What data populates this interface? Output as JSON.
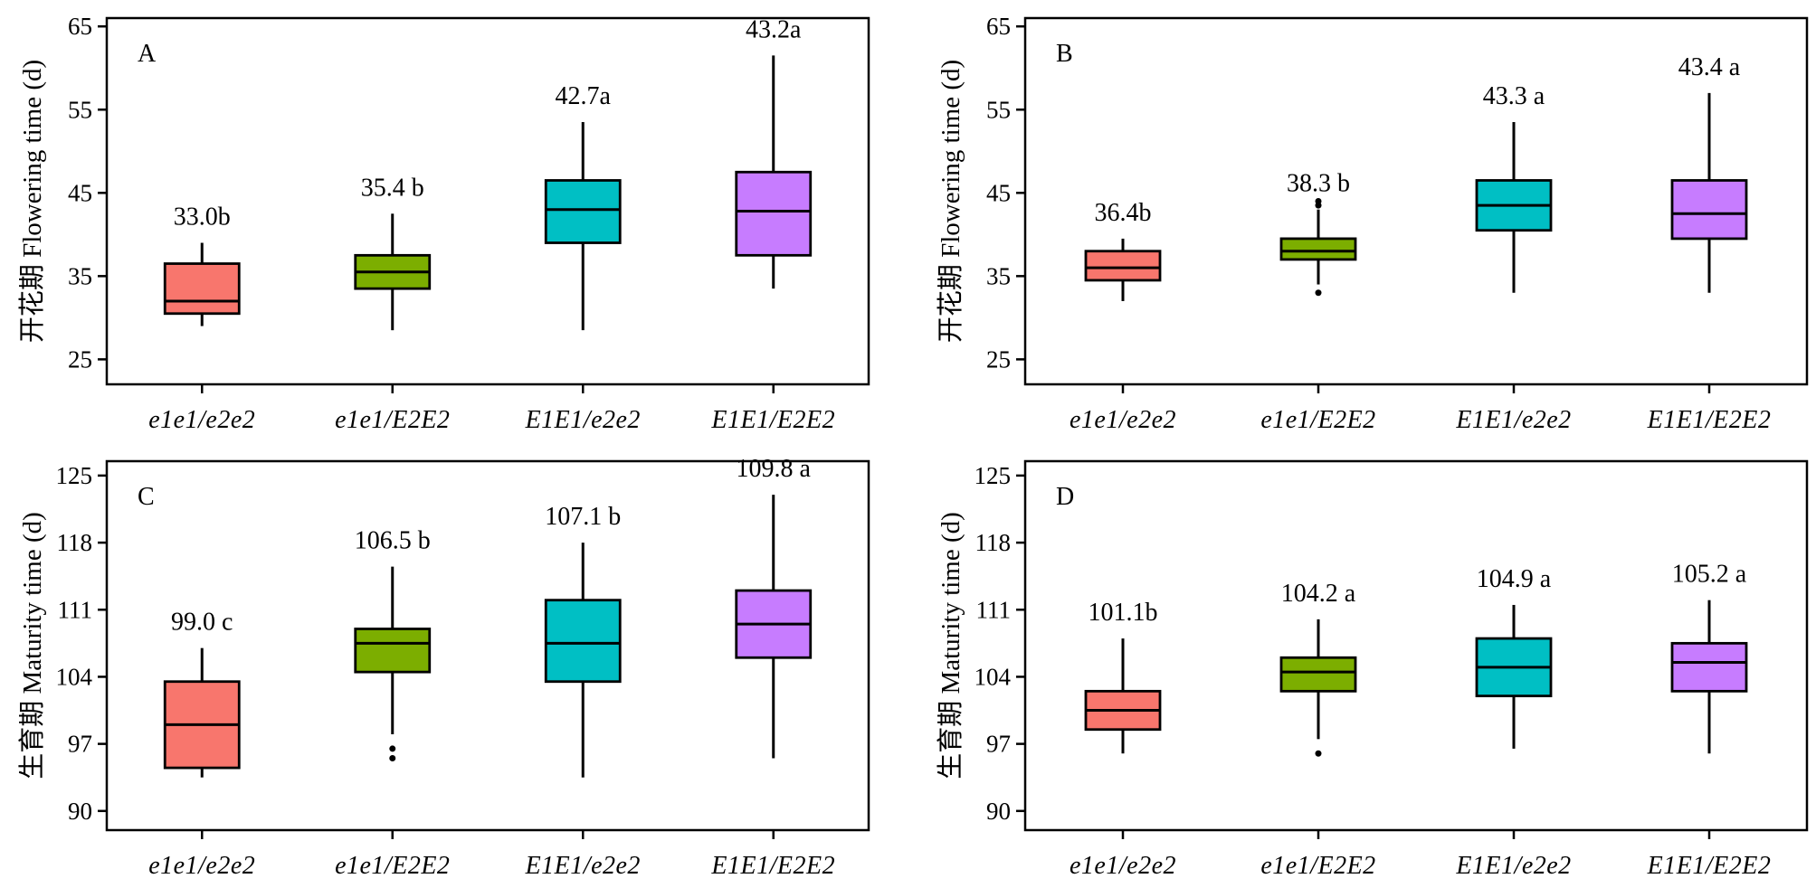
{
  "colors": {
    "e1e1_e2e2": "#f8766d",
    "e1e1_E2E2": "#7cae00",
    "E1E1_e2e2": "#00bfc4",
    "E1E1_E2E2": "#c77cff",
    "axis": "#000000",
    "background": "#ffffff"
  },
  "chart_data": [
    {
      "panel": "A",
      "type": "box",
      "ylabel": "开花期 Flowering time (d)",
      "ylim": [
        22,
        66
      ],
      "yticks": [
        25,
        35,
        45,
        55,
        65
      ],
      "grid": false,
      "categories": [
        "e1e1/e2e2",
        "e1e1/E2E2",
        "E1E1/e2e2",
        "E1E1/E2E2"
      ],
      "boxes": [
        {
          "whisker_low": 29.0,
          "q1": 30.5,
          "median": 32.0,
          "q3": 36.5,
          "whisker_high": 39.0,
          "outliers": [],
          "label": "33.0b"
        },
        {
          "whisker_low": 28.5,
          "q1": 33.5,
          "median": 35.5,
          "q3": 37.5,
          "whisker_high": 42.5,
          "outliers": [],
          "label": "35.4 b"
        },
        {
          "whisker_low": 28.5,
          "q1": 39.0,
          "median": 43.0,
          "q3": 46.5,
          "whisker_high": 53.5,
          "outliers": [],
          "label": "42.7a"
        },
        {
          "whisker_low": 33.5,
          "q1": 37.5,
          "median": 42.8,
          "q3": 47.5,
          "whisker_high": 61.5,
          "outliers": [],
          "label": "43.2a"
        }
      ]
    },
    {
      "panel": "B",
      "type": "box",
      "ylabel": "开花期 Flowering time (d)",
      "ylim": [
        22,
        66
      ],
      "yticks": [
        25,
        35,
        45,
        55,
        65
      ],
      "grid": false,
      "categories": [
        "e1e1/e2e2",
        "e1e1/E2E2",
        "E1E1/e2e2",
        "E1E1/E2E2"
      ],
      "boxes": [
        {
          "whisker_low": 32.0,
          "q1": 34.5,
          "median": 36.0,
          "q3": 38.0,
          "whisker_high": 39.5,
          "outliers": [],
          "label": "36.4b"
        },
        {
          "whisker_low": 34.0,
          "q1": 37.0,
          "median": 38.0,
          "q3": 39.5,
          "whisker_high": 43.0,
          "outliers": [
            33.0,
            43.5,
            44.0
          ],
          "label": "38.3 b"
        },
        {
          "whisker_low": 33.0,
          "q1": 40.5,
          "median": 43.5,
          "q3": 46.5,
          "whisker_high": 53.5,
          "outliers": [],
          "label": "43.3 a"
        },
        {
          "whisker_low": 33.0,
          "q1": 39.5,
          "median": 42.5,
          "q3": 46.5,
          "whisker_high": 57.0,
          "outliers": [],
          "label": "43.4 a"
        }
      ]
    },
    {
      "panel": "C",
      "type": "box",
      "ylabel": "生育期 Maturity time (d)",
      "ylim": [
        88,
        126.5
      ],
      "yticks": [
        90,
        97,
        104,
        111,
        118,
        125
      ],
      "grid": false,
      "categories": [
        "e1e1/e2e2",
        "e1e1/E2E2",
        "E1E1/e2e2",
        "E1E1/E2E2"
      ],
      "boxes": [
        {
          "whisker_low": 93.5,
          "q1": 94.5,
          "median": 99.0,
          "q3": 103.5,
          "whisker_high": 107.0,
          "outliers": [],
          "label": "99.0 c"
        },
        {
          "whisker_low": 98.0,
          "q1": 104.5,
          "median": 107.5,
          "q3": 109.0,
          "whisker_high": 115.5,
          "outliers": [
            95.5,
            96.5
          ],
          "label": "106.5 b"
        },
        {
          "whisker_low": 93.5,
          "q1": 103.5,
          "median": 107.5,
          "q3": 112.0,
          "whisker_high": 118.0,
          "outliers": [],
          "label": "107.1 b"
        },
        {
          "whisker_low": 95.5,
          "q1": 106.0,
          "median": 109.5,
          "q3": 113.0,
          "whisker_high": 123.0,
          "outliers": [],
          "label": "109.8 a"
        }
      ]
    },
    {
      "panel": "D",
      "type": "box",
      "ylabel": "生育期 Maturity time (d)",
      "ylim": [
        88,
        126.5
      ],
      "yticks": [
        90,
        97,
        104,
        111,
        118,
        125
      ],
      "grid": false,
      "categories": [
        "e1e1/e2e2",
        "e1e1/E2E2",
        "E1E1/e2e2",
        "E1E1/E2E2"
      ],
      "boxes": [
        {
          "whisker_low": 96.0,
          "q1": 98.5,
          "median": 100.5,
          "q3": 102.5,
          "whisker_high": 108.0,
          "outliers": [],
          "label": "101.1b"
        },
        {
          "whisker_low": 97.5,
          "q1": 102.5,
          "median": 104.5,
          "q3": 106.0,
          "whisker_high": 110.0,
          "outliers": [
            96.0
          ],
          "label": "104.2 a"
        },
        {
          "whisker_low": 96.5,
          "q1": 102.0,
          "median": 105.0,
          "q3": 108.0,
          "whisker_high": 111.5,
          "outliers": [],
          "label": "104.9 a"
        },
        {
          "whisker_low": 96.0,
          "q1": 102.5,
          "median": 105.5,
          "q3": 107.5,
          "whisker_high": 112.0,
          "outliers": [],
          "label": "105.2 a"
        }
      ]
    }
  ]
}
